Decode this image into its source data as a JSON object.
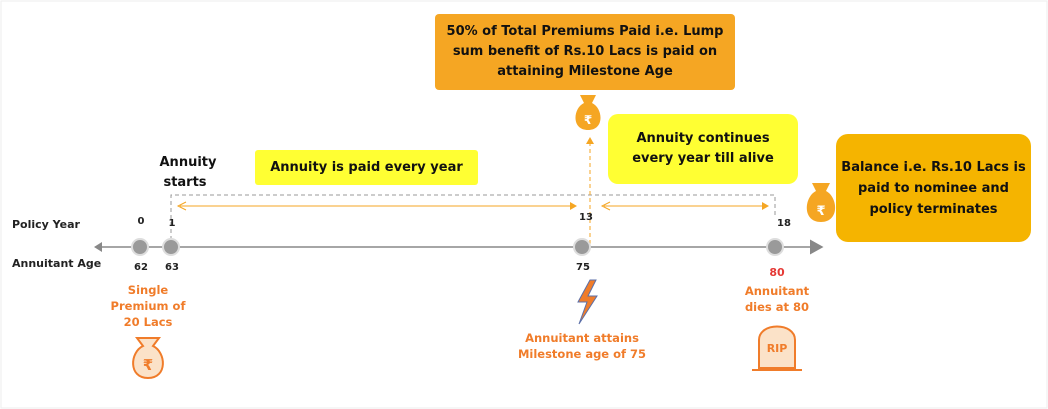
{
  "milestone_box": {
    "lines": [
      "50% of Total Premiums Paid i.e. Lump",
      "sum benefit of Rs.10 Lacs is paid on",
      "attaining Milestone Age"
    ]
  },
  "continue_box": {
    "lines": [
      "Annuity continues",
      "every year till alive"
    ]
  },
  "balance_box": {
    "lines": [
      "Balance i.e. Rs.10 Lacs is",
      "paid to nominee and",
      "policy terminates"
    ]
  },
  "paid_box": {
    "text": "Annuity is paid every year"
  },
  "annuity_starts": {
    "lines": [
      "Annuity",
      "starts"
    ]
  },
  "row_labels": {
    "policy_year": "Policy Year",
    "annuitant_age": "Annuitant Age"
  },
  "policy_years": [
    0,
    1,
    13,
    18
  ],
  "ages": [
    62,
    63,
    75,
    80
  ],
  "single_premium": {
    "lines": [
      "Single",
      "Premium of",
      "20 Lacs"
    ]
  },
  "milestone_note": {
    "lines": [
      "Annuitant attains",
      "Milestone age of 75"
    ]
  },
  "dies_note": {
    "lines": [
      "Annuitant",
      "dies at 80"
    ]
  },
  "icons": {
    "rupee": "₹",
    "rip": "RIP"
  }
}
